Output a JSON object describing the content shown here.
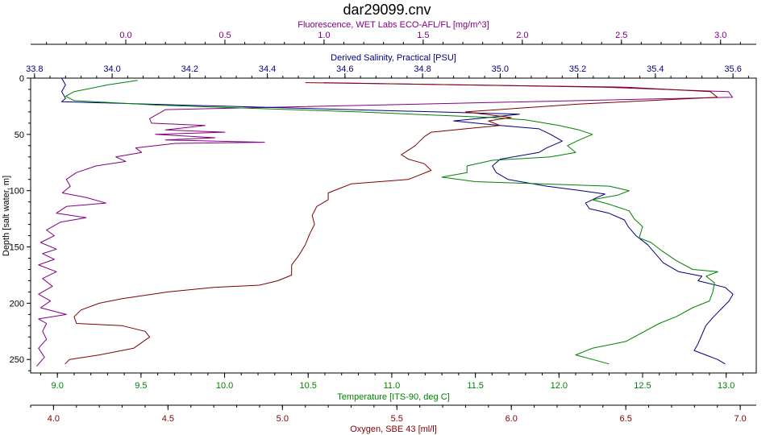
{
  "chart_data": {
    "type": "line",
    "title": "dar29099.cnv",
    "ylabel": "Depth [salt water, m]",
    "yreverse": true,
    "ylim": [
      0,
      262
    ],
    "yticks": [
      "0",
      "50",
      "100",
      "150",
      "200",
      "250"
    ],
    "ytick_values": [
      0,
      50,
      100,
      150,
      200,
      250
    ],
    "axes": [
      {
        "id": "fluor",
        "label": "Fluorescence, WET Labs ECO-AFL/FL [mg/m^3]",
        "position": "top-1",
        "color": "#800080",
        "range": [
          -0.48,
          3.18
        ],
        "tick_values": [
          0,
          0.5,
          1.0,
          1.5,
          2.0,
          2.5,
          3.0
        ],
        "tick_labels": [
          "0.0",
          "0.5",
          "1.0",
          "1.5",
          "2.0",
          "2.5",
          "3.0"
        ]
      },
      {
        "id": "sal",
        "label": "Derived Salinity, Practical [PSU]",
        "position": "top-2",
        "color": "#000080",
        "range": [
          33.79,
          35.66
        ],
        "tick_values": [
          33.8,
          34.0,
          34.2,
          34.4,
          34.6,
          34.8,
          35.0,
          35.2,
          35.4,
          35.6
        ],
        "tick_labels": [
          "33.8",
          "34.0",
          "34.2",
          "34.4",
          "34.6",
          "34.8",
          "35.0",
          "35.2",
          "35.4",
          "35.6"
        ]
      },
      {
        "id": "temp",
        "label": "Temperature [ITS-90, deg C]",
        "position": "bottom-1",
        "color": "#008000",
        "range": [
          8.84,
          13.18
        ],
        "tick_values": [
          9.0,
          9.5,
          10.0,
          10.5,
          11.0,
          11.5,
          12.0,
          12.5,
          13.0
        ],
        "tick_labels": [
          "9.0",
          "9.5",
          "10.0",
          "10.5",
          "11.0",
          "11.5",
          "12.0",
          "12.5",
          "13.0"
        ]
      },
      {
        "id": "oxy",
        "label": "Oxygen, SBE 43 [ml/l]",
        "position": "bottom-2",
        "color": "#800000",
        "range": [
          3.9,
          7.07
        ],
        "tick_values": [
          4.0,
          4.5,
          5.0,
          5.5,
          6.0,
          6.5,
          7.0
        ],
        "tick_labels": [
          "4.0",
          "4.5",
          "5.0",
          "5.5",
          "6.0",
          "6.5",
          "7.0"
        ]
      }
    ],
    "series": [
      {
        "axis": "fluor",
        "color": "#800080",
        "points": [
          [
            1.0,
            4
          ],
          [
            2.4,
            8
          ],
          [
            3.04,
            12
          ],
          [
            3.06,
            17
          ],
          [
            1.5,
            23
          ],
          [
            0.2,
            28
          ],
          [
            0.12,
            36
          ],
          [
            0.13,
            40
          ],
          [
            0.4,
            42
          ],
          [
            0.2,
            46
          ],
          [
            0.5,
            48
          ],
          [
            0.15,
            50
          ],
          [
            0.45,
            53
          ],
          [
            0.2,
            55
          ],
          [
            0.7,
            57
          ],
          [
            0.25,
            58
          ],
          [
            0.05,
            62
          ],
          [
            0.08,
            66
          ],
          [
            -0.05,
            70
          ],
          [
            0.0,
            74
          ],
          [
            -0.15,
            78
          ],
          [
            -0.25,
            84
          ],
          [
            -0.3,
            90
          ],
          [
            -0.28,
            96
          ],
          [
            -0.32,
            102
          ],
          [
            -0.2,
            106
          ],
          [
            -0.1,
            111
          ],
          [
            -0.3,
            114
          ],
          [
            -0.35,
            120
          ],
          [
            -0.2,
            124
          ],
          [
            -0.33,
            128
          ],
          [
            -0.4,
            135
          ],
          [
            -0.36,
            140
          ],
          [
            -0.43,
            146
          ],
          [
            -0.35,
            152
          ],
          [
            -0.42,
            156
          ],
          [
            -0.36,
            161
          ],
          [
            -0.44,
            166
          ],
          [
            -0.35,
            172
          ],
          [
            -0.42,
            178
          ],
          [
            -0.37,
            185
          ],
          [
            -0.44,
            192
          ],
          [
            -0.38,
            198
          ],
          [
            -0.43,
            204
          ],
          [
            -0.3,
            210
          ],
          [
            -0.44,
            214
          ],
          [
            -0.4,
            218
          ],
          [
            -0.42,
            225
          ],
          [
            -0.4,
            232
          ],
          [
            -0.44,
            240
          ],
          [
            -0.41,
            248
          ],
          [
            -0.45,
            256
          ]
        ]
      },
      {
        "axis": "sal",
        "color": "#000080",
        "points": [
          [
            33.87,
            0
          ],
          [
            33.88,
            6
          ],
          [
            33.87,
            12
          ],
          [
            33.88,
            18
          ],
          [
            33.87,
            21
          ],
          [
            34.4,
            26
          ],
          [
            35.05,
            32
          ],
          [
            34.97,
            35
          ],
          [
            34.88,
            38
          ],
          [
            35.0,
            42
          ],
          [
            35.1,
            45
          ],
          [
            35.13,
            50
          ],
          [
            35.16,
            56
          ],
          [
            35.12,
            62
          ],
          [
            35.1,
            66
          ],
          [
            35.0,
            72
          ],
          [
            34.98,
            78
          ],
          [
            34.99,
            84
          ],
          [
            35.02,
            90
          ],
          [
            35.12,
            96
          ],
          [
            35.21,
            100
          ],
          [
            35.27,
            103
          ],
          [
            35.25,
            106
          ],
          [
            35.22,
            111
          ],
          [
            35.23,
            116
          ],
          [
            35.28,
            120
          ],
          [
            35.32,
            126
          ],
          [
            35.33,
            132
          ],
          [
            35.35,
            140
          ],
          [
            35.38,
            148
          ],
          [
            35.4,
            156
          ],
          [
            35.42,
            164
          ],
          [
            35.46,
            172
          ],
          [
            35.52,
            176
          ],
          [
            35.51,
            180
          ],
          [
            35.58,
            186
          ],
          [
            35.6,
            192
          ],
          [
            35.59,
            198
          ],
          [
            35.57,
            205
          ],
          [
            35.55,
            212
          ],
          [
            35.53,
            220
          ],
          [
            35.52,
            228
          ],
          [
            35.51,
            236
          ],
          [
            35.5,
            242
          ],
          [
            35.53,
            246
          ],
          [
            35.56,
            250
          ],
          [
            35.58,
            254
          ]
        ]
      },
      {
        "axis": "temp",
        "color": "#008000",
        "points": [
          [
            9.48,
            2
          ],
          [
            9.3,
            6
          ],
          [
            9.1,
            12
          ],
          [
            9.05,
            16
          ],
          [
            9.1,
            20
          ],
          [
            9.6,
            24
          ],
          [
            10.8,
            30
          ],
          [
            11.6,
            35
          ],
          [
            11.8,
            37
          ],
          [
            12.0,
            42
          ],
          [
            12.12,
            46
          ],
          [
            12.2,
            50
          ],
          [
            12.12,
            55
          ],
          [
            12.05,
            60
          ],
          [
            12.1,
            66
          ],
          [
            11.95,
            70
          ],
          [
            11.6,
            73
          ],
          [
            11.45,
            78
          ],
          [
            11.45,
            84
          ],
          [
            11.3,
            88
          ],
          [
            11.5,
            92
          ],
          [
            11.9,
            94
          ],
          [
            12.3,
            96
          ],
          [
            12.42,
            100
          ],
          [
            12.35,
            104
          ],
          [
            12.2,
            108
          ],
          [
            12.3,
            112
          ],
          [
            12.42,
            118
          ],
          [
            12.45,
            125
          ],
          [
            12.5,
            132
          ],
          [
            12.48,
            142
          ],
          [
            12.55,
            146
          ],
          [
            12.62,
            154
          ],
          [
            12.7,
            162
          ],
          [
            12.8,
            170
          ],
          [
            12.95,
            172
          ],
          [
            12.88,
            176
          ],
          [
            12.93,
            182
          ],
          [
            12.92,
            190
          ],
          [
            12.9,
            198
          ],
          [
            12.8,
            204
          ],
          [
            12.7,
            212
          ],
          [
            12.6,
            218
          ],
          [
            12.5,
            226
          ],
          [
            12.4,
            234
          ],
          [
            12.2,
            240
          ],
          [
            12.1,
            246
          ],
          [
            12.2,
            250
          ],
          [
            12.3,
            254
          ]
        ]
      },
      {
        "axis": "oxy",
        "color": "#800000",
        "points": [
          [
            5.1,
            4
          ],
          [
            6.5,
            8
          ],
          [
            6.87,
            12
          ],
          [
            6.9,
            17
          ],
          [
            6.3,
            23
          ],
          [
            5.8,
            30
          ],
          [
            6.0,
            35
          ],
          [
            5.9,
            38
          ],
          [
            5.95,
            42
          ],
          [
            5.8,
            45
          ],
          [
            5.65,
            48
          ],
          [
            5.62,
            52
          ],
          [
            5.6,
            56
          ],
          [
            5.58,
            60
          ],
          [
            5.55,
            64
          ],
          [
            5.52,
            68
          ],
          [
            5.55,
            72
          ],
          [
            5.62,
            76
          ],
          [
            5.65,
            82
          ],
          [
            5.55,
            90
          ],
          [
            5.3,
            94
          ],
          [
            5.25,
            98
          ],
          [
            5.2,
            102
          ],
          [
            5.2,
            108
          ],
          [
            5.15,
            114
          ],
          [
            5.13,
            122
          ],
          [
            5.14,
            130
          ],
          [
            5.12,
            138
          ],
          [
            5.1,
            148
          ],
          [
            5.07,
            158
          ],
          [
            5.04,
            166
          ],
          [
            5.04,
            175
          ],
          [
            4.98,
            180
          ],
          [
            4.9,
            184
          ],
          [
            4.7,
            186
          ],
          [
            4.5,
            190
          ],
          [
            4.3,
            196
          ],
          [
            4.2,
            200
          ],
          [
            4.12,
            206
          ],
          [
            4.09,
            212
          ],
          [
            4.1,
            218
          ],
          [
            4.3,
            220
          ],
          [
            4.4,
            225
          ],
          [
            4.42,
            230
          ],
          [
            4.35,
            240
          ],
          [
            4.2,
            246
          ],
          [
            4.07,
            250
          ],
          [
            4.05,
            254
          ]
        ]
      }
    ]
  }
}
